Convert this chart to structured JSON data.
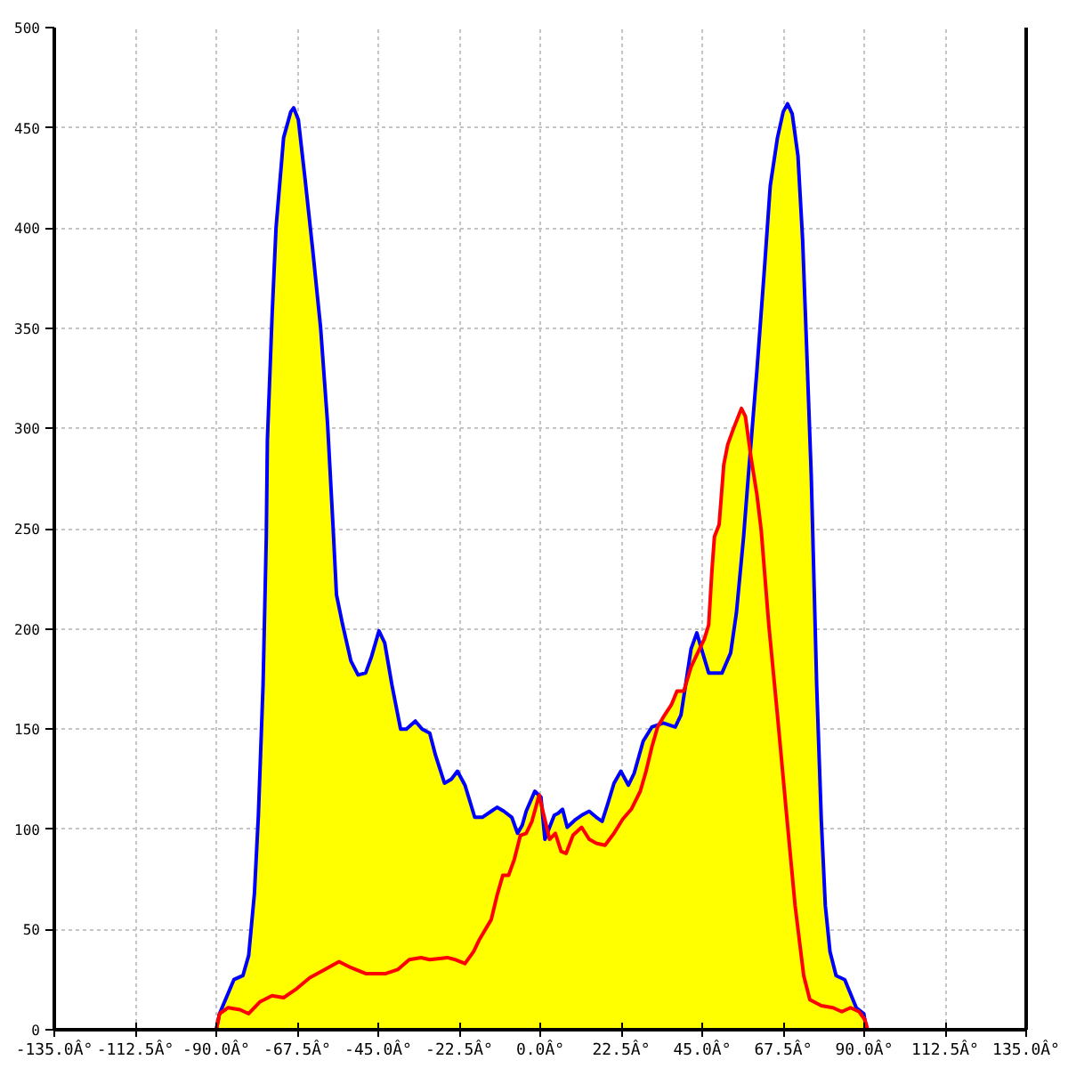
{
  "chart_data": {
    "type": "area",
    "xlim": [
      -135,
      135
    ],
    "ylim": [
      0,
      500
    ],
    "xticks": [
      {
        "value": -135,
        "label": "-135.0Â°"
      },
      {
        "value": -112.5,
        "label": "-112.5Â°"
      },
      {
        "value": -90,
        "label": "-90.0Â°"
      },
      {
        "value": -67.5,
        "label": "-67.5Â°"
      },
      {
        "value": -45,
        "label": "-45.0Â°"
      },
      {
        "value": -22.5,
        "label": "-22.5Â°"
      },
      {
        "value": 0,
        "label": "0.0Â°"
      },
      {
        "value": 22.5,
        "label": "22.5Â°"
      },
      {
        "value": 45,
        "label": "45.0Â°"
      },
      {
        "value": 67.5,
        "label": "67.5Â°"
      },
      {
        "value": 90,
        "label": "90.0Â°"
      },
      {
        "value": 112.5,
        "label": "112.5Â°"
      },
      {
        "value": 135,
        "label": "135.0Â°"
      }
    ],
    "yticks": [
      0,
      50,
      100,
      150,
      200,
      250,
      300,
      350,
      400,
      450,
      500
    ],
    "grid": true,
    "series": [
      {
        "color": "#ffff00",
        "x": [
          -135,
          -90,
          -89.1,
          -85.1,
          -82.6,
          -81,
          -79.4,
          -78.3,
          -77,
          -76.1,
          -75.8,
          -74.5,
          -73.4,
          -71.3,
          -69.3,
          -68.5,
          -67.2,
          -65.3,
          -63.2,
          -61,
          -59.1,
          -57.5,
          -56.6,
          -55,
          -52.6,
          -50.6,
          -48.5,
          -46.9,
          -44.8,
          -43.2,
          -41.2,
          -38.8,
          -37.2,
          -34.7,
          -32.8,
          -30.7,
          -29.1,
          -26.6,
          -24.7,
          -23,
          -20.9,
          -18.2,
          -16.1,
          -13.6,
          -12,
          -10.1,
          -7.9,
          -6.3,
          -5,
          -3.9,
          -1.5,
          0.2,
          1,
          2.2,
          2.6,
          3.9,
          5,
          6.2,
          7.5,
          9.9,
          11.5,
          13.6,
          15.6,
          17.2,
          18.8,
          20.5,
          22.4,
          24.5,
          26.1,
          28.6,
          31,
          32.6,
          34.2,
          36.4,
          38,
          39.9,
          40.3,
          41.9,
          43.5,
          44.3,
          45.6,
          46.8,
          47.7,
          48.4,
          49.7,
          51,
          52.1,
          53.7,
          55.9,
          57,
          58.2,
          60.2,
          62.3,
          63.9,
          65.9,
          67.5,
          68.7,
          70,
          71.6,
          72.9,
          74,
          75.3,
          76.8,
          78.1,
          79.2,
          80.5,
          82.2,
          84.6,
          86.2,
          87.8,
          89.9,
          90.2,
          91,
          135
        ],
        "values": [
          0,
          0,
          8,
          25,
          27,
          37,
          68,
          107,
          172,
          246,
          294,
          356,
          400,
          445,
          458,
          460,
          454,
          424,
          389,
          350,
          303,
          249,
          217,
          203,
          184,
          177,
          178,
          186,
          199,
          193,
          172,
          150,
          150,
          154,
          150,
          148,
          137,
          123,
          125,
          129,
          122,
          106,
          106,
          109,
          111,
          109,
          106,
          98,
          102,
          109,
          119,
          116,
          107,
          98,
          101,
          107,
          108,
          110,
          101,
          105,
          107,
          109,
          106,
          104,
          113,
          123,
          129,
          122,
          128,
          144,
          151,
          152,
          156,
          162,
          169,
          169,
          171,
          190,
          198,
          191,
          195,
          202,
          229,
          246,
          252,
          282,
          292,
          300,
          310,
          306,
          289,
          329,
          380,
          421,
          445,
          458,
          462,
          457,
          436,
          394,
          341,
          276,
          172,
          104,
          62,
          39,
          27,
          25,
          18,
          11,
          8,
          5,
          0,
          0
        ]
      },
      {
        "type": "line",
        "color": "#0000ff",
        "x": [
          -90,
          -89.1,
          -85.1,
          -82.6,
          -81,
          -79.4,
          -78.3,
          -77,
          -76.1,
          -75.8,
          -74.5,
          -73.4,
          -71.3,
          -69.3,
          -68.5,
          -67.2,
          -65.3,
          -63.2,
          -61,
          -59.1,
          -57.5,
          -56.6,
          -55,
          -52.6,
          -50.6,
          -48.5,
          -46.9,
          -44.8,
          -43.2,
          -41.2,
          -38.8,
          -37.2,
          -34.7,
          -32.8,
          -30.7,
          -29.1,
          -26.6,
          -24.7,
          -23,
          -20.9,
          -18.2,
          -16.1,
          -13.6,
          -12,
          -10.1,
          -7.9,
          -6.3,
          -5,
          -3.9,
          -1.5,
          0.2,
          1.3,
          2.6,
          3.9,
          5,
          6.2,
          7.5,
          9.9,
          11.5,
          13.6,
          15.6,
          17.2,
          18.8,
          20.5,
          22.4,
          24.5,
          26.1,
          28.6,
          31,
          34.2,
          37.5,
          39.1,
          40.3,
          41.9,
          43.5,
          44.8,
          46.8,
          50.5,
          52.9,
          54.5,
          56.5,
          57.8,
          60.2,
          62.3,
          63.9,
          65.9,
          67.5,
          68.7,
          70,
          71.6,
          72.9,
          74,
          75.3,
          76.8,
          78.1,
          79.2,
          80.5,
          82.2,
          84.6,
          86.2,
          87.8,
          89.9,
          90.6
        ],
        "values": [
          0,
          8,
          25,
          27,
          37,
          68,
          107,
          172,
          246,
          294,
          356,
          400,
          445,
          458,
          460,
          454,
          424,
          389,
          350,
          303,
          249,
          217,
          203,
          184,
          177,
          178,
          186,
          199,
          193,
          172,
          150,
          150,
          154,
          150,
          148,
          137,
          123,
          125,
          129,
          122,
          106,
          106,
          109,
          111,
          109,
          106,
          98,
          102,
          109,
          119,
          116,
          95,
          101,
          107,
          108,
          110,
          101,
          105,
          107,
          109,
          106,
          104,
          113,
          123,
          129,
          122,
          128,
          144,
          151,
          153,
          151,
          157,
          171,
          190,
          198,
          190,
          178,
          178,
          188,
          208,
          246,
          276,
          329,
          380,
          421,
          445,
          458,
          462,
          457,
          436,
          394,
          341,
          276,
          172,
          104,
          62,
          39,
          27,
          25,
          18,
          11,
          8,
          0
        ]
      },
      {
        "type": "line",
        "color": "#ff0000",
        "x": [
          -135,
          -90,
          -89.1,
          -86.7,
          -83.4,
          -81,
          -77.8,
          -74.5,
          -71.3,
          -68,
          -64,
          -59.9,
          -55.9,
          -52.6,
          -48.5,
          -42.9,
          -39.6,
          -36.4,
          -33.1,
          -30.7,
          -25.8,
          -23.7,
          -20.9,
          -18.5,
          -16.9,
          -13.6,
          -12,
          -10.4,
          -8.8,
          -7.2,
          -5.5,
          -3.9,
          -2.3,
          -0.3,
          1,
          2.6,
          4.2,
          5.8,
          7.2,
          9.1,
          11.5,
          13.6,
          15.6,
          18,
          20.5,
          22.9,
          25.3,
          27.8,
          29.4,
          31,
          32.6,
          34.2,
          36.4,
          38,
          39.9,
          41.9,
          44,
          45.6,
          46.8,
          47.7,
          48.4,
          49.7,
          51,
          52.1,
          53.7,
          55.9,
          57,
          58.6,
          60.2,
          61.4,
          63.5,
          65.9,
          68.3,
          70.8,
          73.2,
          74.9,
          78.1,
          81.3,
          83.8,
          86.2,
          88.6,
          90.2,
          91,
          135
        ],
        "values": [
          0,
          0,
          8,
          11,
          10,
          8,
          14,
          17,
          16,
          20,
          26,
          30,
          34,
          31,
          28,
          28,
          30,
          35,
          36,
          35,
          36,
          35,
          33,
          39,
          45,
          55,
          67,
          77,
          77,
          85,
          97,
          98,
          104,
          117,
          107,
          95,
          98,
          89,
          88,
          97,
          101,
          95,
          93,
          92,
          98,
          105,
          110,
          119,
          129,
          141,
          151,
          156,
          162,
          169,
          169,
          181,
          189,
          195,
          202,
          229,
          246,
          252,
          282,
          292,
          300,
          310,
          306,
          285,
          267,
          249,
          202,
          157,
          110,
          62,
          27,
          15,
          12,
          11,
          9,
          11,
          9,
          5,
          0,
          0
        ]
      }
    ]
  }
}
